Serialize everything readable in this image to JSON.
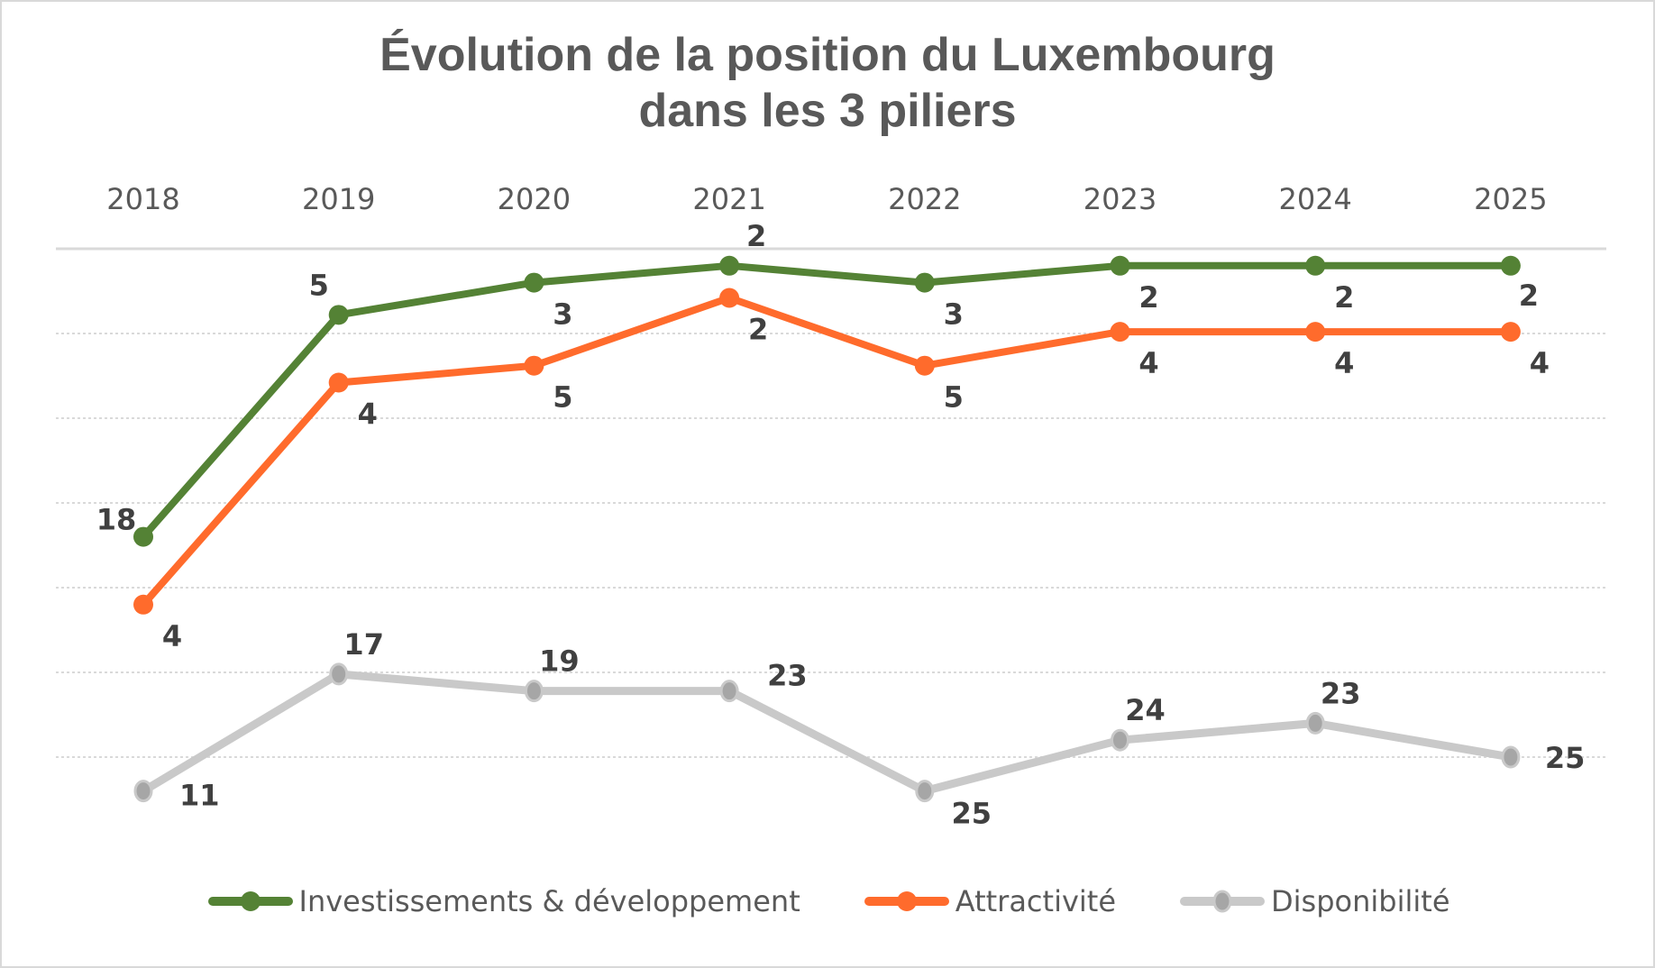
{
  "chart_data": {
    "type": "line",
    "title_line1": "Évolution de la position du Luxembourg",
    "title_line2": "dans les 3 piliers",
    "xlabel": "",
    "ylabel": "",
    "categories": [
      "2018",
      "2019",
      "2020",
      "2021",
      "2022",
      "2023",
      "2024",
      "2025"
    ],
    "y_axis": {
      "reversed": true,
      "range": [
        1,
        35
      ],
      "gridlines": [
        6,
        11,
        16,
        21,
        26,
        31
      ],
      "tick_labels_visible": false
    },
    "grid": true,
    "legend_position": "bottom",
    "series": [
      {
        "name": "Investissements & développement",
        "color": "#548235",
        "marker_color": "#548235",
        "values": [
          18,
          5,
          3,
          2,
          3,
          2,
          2,
          2
        ],
        "plot_values": [
          18,
          4.9,
          3,
          2,
          3,
          2,
          2,
          2
        ],
        "label_positions": [
          "above-left",
          "above-left",
          "below-right",
          "above-right",
          "below-right",
          "below-right",
          "below-right",
          "below-right"
        ]
      },
      {
        "name": "Attractivité",
        "color": "#ff6b2c",
        "marker_color": "#ff6b2c",
        "values": [
          4,
          4,
          5,
          2,
          5,
          4,
          4,
          4
        ],
        "plot_values": [
          22,
          8.9,
          7.9,
          3.9,
          7.9,
          5.9,
          5.9,
          5.9
        ],
        "label_positions": [
          "below-right",
          "below-right",
          "below-right",
          "below-right",
          "below-right",
          "below-right",
          "below-right",
          "below-right"
        ]
      },
      {
        "name": "Disponibilité",
        "color": "#c9c9c9",
        "marker_color": "#a6a6a6",
        "values": [
          11,
          17,
          19,
          23,
          25,
          24,
          23,
          25
        ],
        "plot_values": [
          33,
          26.1,
          27.1,
          27.1,
          33,
          30,
          29,
          31
        ],
        "label_positions": [
          "right",
          "above-right",
          "above-right",
          "right-above",
          "below-right",
          "above-right",
          "above-right",
          "right"
        ]
      }
    ]
  }
}
